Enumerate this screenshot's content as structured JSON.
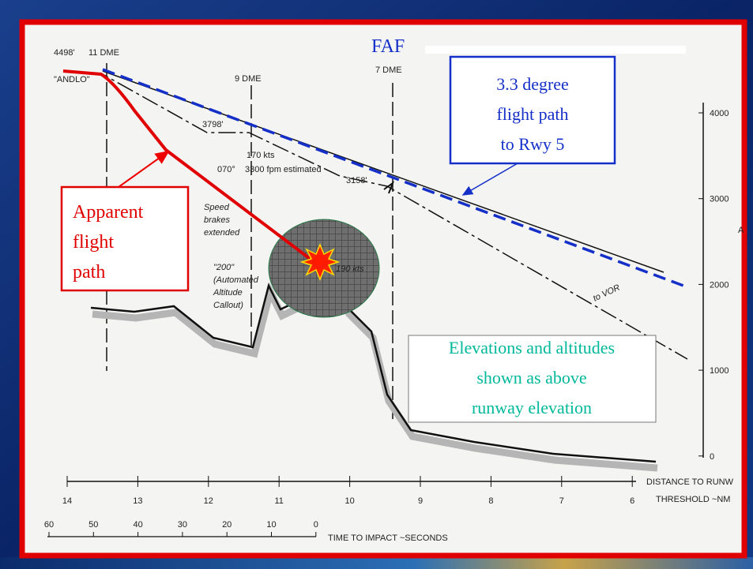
{
  "chart_labels": {
    "start_altitude": "4498'",
    "dme_11": "11 DME",
    "fix_name": "\"ANDLO\"",
    "dme_9": "9 DME",
    "faf": "FAF",
    "dme_7": "7 DME",
    "altitude_3798": "3798'",
    "speed_170": "170 kts",
    "heading": "070°",
    "descent_rate": "3300 fpm estimated",
    "altitude_3158": "3158'",
    "speed_brakes": [
      "Speed",
      "brakes",
      "extended"
    ],
    "callout_200": [
      "\"200\"",
      "(Automated",
      "Altitude",
      "Callout)"
    ],
    "speed_190": "190 kts",
    "to_vor": "to VOR"
  },
  "callouts": {
    "apparent_path": [
      "Apparent",
      "flight",
      "path"
    ],
    "glide_path": [
      "3.3 degree",
      "flight path",
      "to Rwy 5"
    ],
    "elevation_note": [
      "Elevations and altitudes",
      "shown as above",
      "runway elevation"
    ]
  },
  "altitude_axis": {
    "ticks": [
      "4000",
      "3000",
      "2000",
      "1000",
      "0"
    ],
    "label": "A"
  },
  "distance_axis": {
    "ticks": [
      "14",
      "13",
      "12",
      "11",
      "10",
      "9",
      "8",
      "7",
      "6"
    ],
    "title": [
      "DISTANCE TO RUNW",
      "THRESHOLD ~NM"
    ]
  },
  "time_axis": {
    "ticks": [
      "60",
      "50",
      "40",
      "30",
      "20",
      "10",
      "0"
    ],
    "title": "TIME TO IMPACT ~SECONDS"
  }
}
